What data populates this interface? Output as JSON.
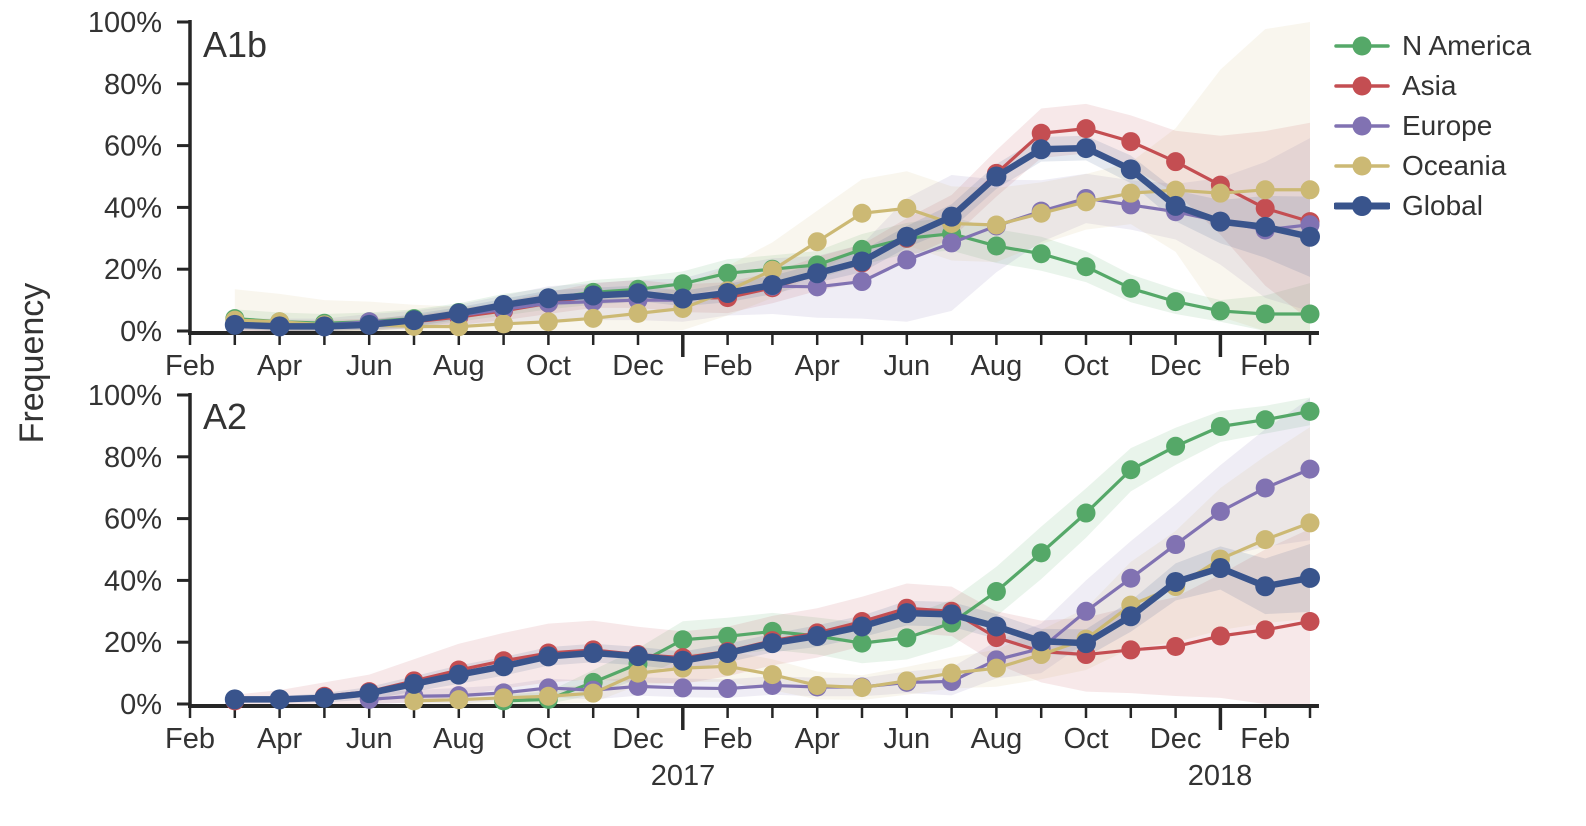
{
  "ylabel": "Frequency",
  "colors": {
    "n_america": "#55A868",
    "asia": "#C44E52",
    "europe": "#8172B2",
    "oceania": "#CCB974",
    "global": "#39548C",
    "text": "#333333",
    "axis": "#262626"
  },
  "legend": {
    "items": [
      {
        "label": "N America",
        "key": "n_america"
      },
      {
        "label": "Asia",
        "key": "asia"
      },
      {
        "label": "Europe",
        "key": "europe"
      },
      {
        "label": "Oceania",
        "key": "oceania"
      },
      {
        "label": "Global",
        "key": "global"
      }
    ]
  },
  "axis": {
    "ytick_labels": [
      "0%",
      "20%",
      "40%",
      "60%",
      "80%",
      "100%"
    ],
    "xtick_labels": [
      "Feb",
      "Apr",
      "Jun",
      "Aug",
      "Oct",
      "Dec",
      "Feb",
      "Apr",
      "Jun",
      "Aug",
      "Oct",
      "Dec",
      "Feb"
    ],
    "xtick_month_indices": [
      0,
      2,
      4,
      6,
      8,
      10,
      12,
      14,
      16,
      18,
      20,
      22,
      24
    ],
    "n_month_ticks": 26,
    "year_tick_indices": [
      11,
      23
    ],
    "year_labels": [
      "2017",
      "2018"
    ]
  },
  "chart_data": [
    {
      "type": "line",
      "title": "A1b",
      "ylabel": "Frequency",
      "ylim": [
        0,
        100
      ],
      "legend_position": "upper right outside",
      "grid": false,
      "x": [
        "2016-03",
        "2016-04",
        "2016-05",
        "2016-06",
        "2016-07",
        "2016-08",
        "2016-09",
        "2016-10",
        "2016-11",
        "2016-12",
        "2017-01",
        "2017-02",
        "2017-03",
        "2017-04",
        "2017-05",
        "2017-06",
        "2017-07",
        "2017-08",
        "2017-09",
        "2017-10",
        "2017-11",
        "2017-12",
        "2018-01",
        "2018-02",
        "2018-03"
      ],
      "series": [
        {
          "name": "N America",
          "key": "n_america",
          "values": [
            4,
            3,
            2.5,
            3,
            4,
            6,
            8.5,
            10.5,
            12.5,
            13.5,
            15.3,
            18.7,
            20,
            21.4,
            26.4,
            30,
            31.5,
            27.5,
            25,
            20.8,
            13.8,
            9.5,
            6.5,
            5.5,
            5.5
          ],
          "band_margin": [
            3,
            3,
            3,
            3,
            3,
            3,
            3.5,
            3.5,
            4,
            4,
            4,
            4.5,
            4.5,
            4.5,
            5,
            5,
            5.5,
            5.5,
            5.5,
            5,
            4.5,
            4,
            3.5,
            6,
            10
          ]
        },
        {
          "name": "Asia",
          "key": "asia",
          "values": [
            2,
            1.5,
            1.5,
            2,
            3,
            4.5,
            6.5,
            9,
            11.5,
            12,
            10.6,
            10.8,
            14,
            18.5,
            22,
            30,
            37,
            51,
            64,
            65.5,
            61.3,
            54.8,
            47.2,
            39.7,
            35.4
          ],
          "band_margin": [
            2,
            2,
            2,
            2,
            2,
            2.5,
            3,
            3.5,
            4,
            4.5,
            4.5,
            5,
            5,
            5.5,
            6,
            6.5,
            7,
            7.5,
            8,
            8,
            8.5,
            10,
            16,
            25,
            32
          ]
        },
        {
          "name": "Europe",
          "key": "europe",
          "values": [
            2,
            2,
            2,
            3,
            3.5,
            5,
            7,
            9,
            9.5,
            10,
            10,
            13,
            14.5,
            14.3,
            16,
            23,
            28.5,
            34,
            38.8,
            42.9,
            40.8,
            38.6,
            35.5,
            32.7,
            34.4
          ],
          "band_margin": [
            2,
            2,
            2,
            2.5,
            3,
            3.5,
            4.5,
            5.5,
            6,
            6.5,
            7,
            8,
            9,
            10,
            12,
            20,
            22,
            15,
            10,
            8,
            8,
            9,
            14,
            22,
            28
          ]
        },
        {
          "name": "Oceania",
          "key": "oceania",
          "values": [
            3.5,
            3,
            2,
            2,
            1.5,
            1.4,
            2.3,
            3,
            4.1,
            5.7,
            7.3,
            13,
            19.7,
            28.9,
            38.1,
            39.7,
            34.8,
            34.3,
            38.1,
            41.8,
            44.6,
            45.6,
            44.6,
            45.7,
            45.7
          ],
          "band_margin": [
            10,
            9,
            8,
            7.5,
            7,
            6.5,
            6,
            6,
            6,
            6,
            7,
            8,
            9,
            10,
            11,
            12,
            12,
            12,
            10,
            9,
            10,
            20,
            40,
            52,
            56
          ]
        },
        {
          "name": "Global",
          "key": "global",
          "values": [
            2,
            1.5,
            1.5,
            2,
            3.5,
            5.7,
            8.4,
            10.6,
            11.5,
            12.2,
            10.5,
            12.3,
            14.9,
            18.7,
            22.5,
            30.5,
            37,
            50,
            58.8,
            59.2,
            52.3,
            40.5,
            35.4,
            33.7,
            30.5
          ],
          "band_margin": [
            1.5,
            1.5,
            1.5,
            1.5,
            2,
            2,
            2,
            2.5,
            2.5,
            2.5,
            2.5,
            3,
            3,
            3,
            3.5,
            3.5,
            4,
            4,
            4,
            4,
            4.5,
            5,
            7,
            10,
            13
          ]
        }
      ]
    },
    {
      "type": "line",
      "title": "A2",
      "ylabel": "Frequency",
      "ylim": [
        0,
        100
      ],
      "grid": false,
      "x": [
        "2016-03",
        "2016-04",
        "2016-05",
        "2016-06",
        "2016-07",
        "2016-08",
        "2016-09",
        "2016-10",
        "2016-11",
        "2016-12",
        "2017-01",
        "2017-02",
        "2017-03",
        "2017-04",
        "2017-05",
        "2017-06",
        "2017-07",
        "2017-08",
        "2017-09",
        "2017-10",
        "2017-11",
        "2017-12",
        "2018-01",
        "2018-02",
        "2018-03"
      ],
      "series": [
        {
          "name": "N America",
          "key": "n_america",
          "values": [
            null,
            null,
            null,
            null,
            null,
            null,
            1,
            1.5,
            7,
            13,
            20.8,
            21.9,
            23.5,
            22,
            19.7,
            21.4,
            26.2,
            36.4,
            48.9,
            61.8,
            75.8,
            83.4,
            89.8,
            92,
            94.7
          ],
          "band_margin": [
            0,
            0,
            0,
            0,
            0,
            0,
            2,
            2.5,
            4,
            5,
            6,
            6,
            6,
            6,
            6.5,
            7,
            7.5,
            8,
            8.5,
            8,
            7,
            6,
            5,
            4.5,
            4.5
          ]
        },
        {
          "name": "Asia",
          "key": "asia",
          "values": [
            1,
            1.5,
            2.5,
            4,
            7.5,
            11,
            14,
            16.5,
            17.5,
            16,
            15,
            17,
            20.5,
            23,
            26.7,
            31,
            30,
            21.5,
            17,
            16,
            17.5,
            18.6,
            22,
            24,
            26.7
          ],
          "band_margin": [
            2,
            3,
            4.5,
            5.5,
            7,
            8.5,
            9,
            9.5,
            9.5,
            9,
            8.5,
            8,
            8,
            8,
            8,
            8,
            8,
            8.5,
            10,
            12,
            14,
            16,
            20,
            26,
            30
          ]
        },
        {
          "name": "Europe",
          "key": "europe",
          "values": [
            null,
            null,
            null,
            1.5,
            2.5,
            2.7,
            3.6,
            5.2,
            4.5,
            5.7,
            5.2,
            5,
            6,
            5.5,
            5.5,
            7,
            7.3,
            14.3,
            18,
            30,
            40.7,
            51.6,
            62.3,
            69.9,
            76
          ],
          "band_margin": [
            0,
            0,
            0,
            2,
            2,
            2.5,
            2.5,
            3,
            3,
            3,
            3,
            3,
            3,
            3,
            3,
            3.5,
            4.5,
            6,
            8,
            10,
            12,
            13,
            15,
            19,
            23
          ]
        },
        {
          "name": "Oceania",
          "key": "oceania",
          "values": [
            null,
            null,
            null,
            null,
            1,
            1.4,
            2,
            2.5,
            3.5,
            10,
            11.6,
            12.2,
            9.5,
            6,
            5.3,
            7.5,
            10,
            11.6,
            16,
            21,
            32,
            38,
            46.9,
            53.2,
            58.6
          ],
          "band_margin": [
            0,
            0,
            0,
            0,
            1.5,
            2,
            2,
            2.5,
            3,
            4,
            4.5,
            5,
            5,
            4.5,
            4,
            4.5,
            5,
            6,
            8,
            10,
            14,
            18,
            23,
            27,
            31
          ]
        },
        {
          "name": "Global",
          "key": "global",
          "values": [
            1.5,
            1.5,
            2,
            3.5,
            6.5,
            9.5,
            12.2,
            15.4,
            16.5,
            15.5,
            14,
            16.5,
            19.7,
            22,
            25.1,
            29.4,
            29,
            25.1,
            20.3,
            19.7,
            28.4,
            39.5,
            44,
            38.1,
            40.8
          ],
          "band_margin": [
            1,
            1,
            1.5,
            2,
            2.5,
            3,
            3,
            3,
            3,
            3,
            3,
            3,
            3,
            3.5,
            3.5,
            4,
            4,
            4,
            4,
            4.5,
            5,
            6,
            7,
            9,
            11
          ]
        }
      ]
    }
  ]
}
